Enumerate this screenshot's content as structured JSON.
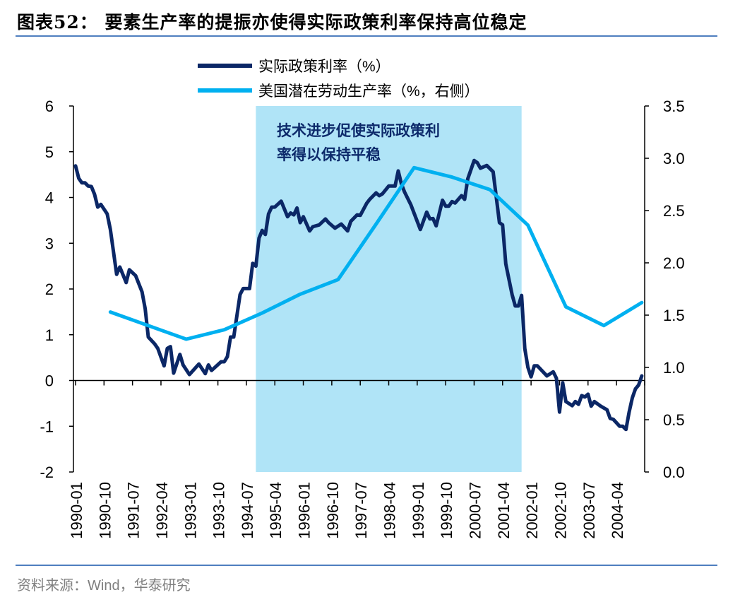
{
  "title": "图表52： 要素生产率的提振亦使得实际政策利率保持高位稳定",
  "source": "资料来源：Wind，华泰研究",
  "chart_data": {
    "type": "line",
    "title": "图表52： 要素生产率的提振亦使得实际政策利率保持高位稳定",
    "xlabel": "",
    "ylabel": "",
    "x_range": [
      "1990-01",
      "2004-12"
    ],
    "x_tick_labels": [
      "1990-01",
      "1990-10",
      "1991-07",
      "1992-04",
      "1993-01",
      "1993-10",
      "1994-07",
      "1995-04",
      "1996-01",
      "1996-10",
      "1997-07",
      "1998-04",
      "1999-01",
      "1999-10",
      "2000-07",
      "2001-04",
      "2002-01",
      "2002-10",
      "2003-07",
      "2004-04"
    ],
    "y_left": {
      "lim": [
        -2,
        6
      ],
      "ticks": [
        "-2",
        "-1",
        "0",
        "1",
        "2",
        "3",
        "4",
        "5",
        "6"
      ]
    },
    "y_right": {
      "lim": [
        0,
        3.5
      ],
      "ticks": [
        "0.0",
        "0.5",
        "1.0",
        "1.5",
        "2.0",
        "2.5",
        "3.0",
        "3.5"
      ]
    },
    "grid": false,
    "legend_position": "top-center",
    "highlight": {
      "from": "1994-10",
      "to": "2001-10",
      "color": "#b0e4f7",
      "annotation": [
        "技术进步促使实际政策利",
        "率得以保持平稳"
      ]
    },
    "series": [
      {
        "name": "实际政策利率（%）",
        "axis": "left",
        "color": "#0b2766",
        "points": [
          [
            "1990-01",
            4.69
          ],
          [
            "1990-02",
            4.42
          ],
          [
            "1990-03",
            4.32
          ],
          [
            "1990-04",
            4.32
          ],
          [
            "1990-05",
            4.25
          ],
          [
            "1990-06",
            4.24
          ],
          [
            "1990-07",
            4.07
          ],
          [
            "1990-08",
            3.79
          ],
          [
            "1990-09",
            3.85
          ],
          [
            "1990-11",
            3.64
          ],
          [
            "1990-12",
            3.3
          ],
          [
            "1991-02",
            2.32
          ],
          [
            "1991-03",
            2.48
          ],
          [
            "1991-05",
            2.14
          ],
          [
            "1991-06",
            2.42
          ],
          [
            "1991-08",
            2.29
          ],
          [
            "1991-10",
            1.94
          ],
          [
            "1991-11",
            1.57
          ],
          [
            "1991-12",
            0.95
          ],
          [
            "1992-02",
            0.8
          ],
          [
            "1992-03",
            0.7
          ],
          [
            "1992-05",
            0.32
          ],
          [
            "1992-06",
            0.7
          ],
          [
            "1992-07",
            0.74
          ],
          [
            "1992-08",
            0.16
          ],
          [
            "1992-10",
            0.57
          ],
          [
            "1992-11",
            0.34
          ],
          [
            "1993-01",
            0.13
          ],
          [
            "1993-04",
            0.36
          ],
          [
            "1993-06",
            0.15
          ],
          [
            "1993-07",
            0.34
          ],
          [
            "1993-08",
            0.22
          ],
          [
            "1993-11",
            0.41
          ],
          [
            "1993-12",
            0.41
          ],
          [
            "1994-01",
            0.52
          ],
          [
            "1994-02",
            0.95
          ],
          [
            "1994-03",
            0.95
          ],
          [
            "1994-05",
            1.88
          ],
          [
            "1994-06",
            2.01
          ],
          [
            "1994-08",
            2.01
          ],
          [
            "1994-09",
            2.56
          ],
          [
            "1994-10",
            2.5
          ],
          [
            "1994-11",
            3.11
          ],
          [
            "1994-12",
            3.28
          ],
          [
            "1995-01",
            3.19
          ],
          [
            "1995-02",
            3.64
          ],
          [
            "1995-03",
            3.79
          ],
          [
            "1995-04",
            3.79
          ],
          [
            "1995-06",
            3.92
          ],
          [
            "1995-08",
            3.58
          ],
          [
            "1995-09",
            3.66
          ],
          [
            "1995-10",
            3.62
          ],
          [
            "1995-11",
            3.77
          ],
          [
            "1995-12",
            3.45
          ],
          [
            "1996-01",
            3.58
          ],
          [
            "1996-03",
            3.27
          ],
          [
            "1996-04",
            3.36
          ],
          [
            "1996-06",
            3.4
          ],
          [
            "1996-08",
            3.53
          ],
          [
            "1996-09",
            3.45
          ],
          [
            "1996-11",
            3.33
          ],
          [
            "1997-01",
            3.42
          ],
          [
            "1997-03",
            3.27
          ],
          [
            "1997-04",
            3.48
          ],
          [
            "1997-06",
            3.62
          ],
          [
            "1997-07",
            3.61
          ],
          [
            "1997-09",
            3.87
          ],
          [
            "1997-10",
            3.96
          ],
          [
            "1997-12",
            4.1
          ],
          [
            "1998-01",
            4.04
          ],
          [
            "1998-02",
            4.08
          ],
          [
            "1998-04",
            4.25
          ],
          [
            "1998-06",
            4.25
          ],
          [
            "1998-07",
            4.58
          ],
          [
            "1998-08",
            4.3
          ],
          [
            "1998-09",
            4.12
          ],
          [
            "1998-11",
            3.84
          ],
          [
            "1999-02",
            3.3
          ],
          [
            "1999-04",
            3.68
          ],
          [
            "1999-05",
            3.53
          ],
          [
            "1999-06",
            3.54
          ],
          [
            "1999-07",
            3.38
          ],
          [
            "1999-09",
            3.94
          ],
          [
            "1999-10",
            3.81
          ],
          [
            "1999-11",
            3.81
          ],
          [
            "1999-12",
            3.91
          ],
          [
            "2000-01",
            3.88
          ],
          [
            "2000-03",
            4.04
          ],
          [
            "2000-04",
            3.96
          ],
          [
            "2000-05",
            4.41
          ],
          [
            "2000-07",
            4.81
          ],
          [
            "2000-08",
            4.76
          ],
          [
            "2000-09",
            4.64
          ],
          [
            "2000-11",
            4.7
          ],
          [
            "2001-01",
            4.56
          ],
          [
            "2001-03",
            3.45
          ],
          [
            "2001-04",
            3.4
          ],
          [
            "2001-05",
            2.55
          ],
          [
            "2001-07",
            1.88
          ],
          [
            "2001-08",
            1.63
          ],
          [
            "2001-09",
            1.63
          ],
          [
            "2001-10",
            1.86
          ],
          [
            "2001-11",
            0.7
          ],
          [
            "2001-12",
            0.29
          ],
          [
            "2002-01",
            0.08
          ],
          [
            "2002-02",
            0.32
          ],
          [
            "2002-03",
            0.32
          ],
          [
            "2002-06",
            0.1
          ],
          [
            "2002-08",
            0.19
          ],
          [
            "2002-09",
            0.05
          ],
          [
            "2002-10",
            -0.69
          ],
          [
            "2002-11",
            -0.05
          ],
          [
            "2002-12",
            -0.46
          ],
          [
            "2003-02",
            -0.55
          ],
          [
            "2003-03",
            -0.46
          ],
          [
            "2003-04",
            -0.52
          ],
          [
            "2003-05",
            -0.33
          ],
          [
            "2003-06",
            -0.36
          ],
          [
            "2003-07",
            -0.3
          ],
          [
            "2003-08",
            -0.56
          ],
          [
            "2003-09",
            -0.46
          ],
          [
            "2003-11",
            -0.56
          ],
          [
            "2004-01",
            -0.64
          ],
          [
            "2004-02",
            -0.83
          ],
          [
            "2004-03",
            -0.85
          ],
          [
            "2004-05",
            -1.0
          ],
          [
            "2004-06",
            -1.0
          ],
          [
            "2004-07",
            -1.07
          ],
          [
            "2004-08",
            -0.69
          ],
          [
            "2004-09",
            -0.38
          ],
          [
            "2004-10",
            -0.18
          ],
          [
            "2004-11",
            -0.1
          ],
          [
            "2004-12",
            0.1
          ]
        ]
      },
      {
        "name": "美国潜在劳动生产率（%，右侧）",
        "axis": "right",
        "color": "#00b0f0",
        "points": [
          [
            "1990-12",
            1.53
          ],
          [
            "1991-12",
            1.4
          ],
          [
            "1992-12",
            1.27
          ],
          [
            "1993-12",
            1.36
          ],
          [
            "1994-12",
            1.52
          ],
          [
            "1995-12",
            1.7
          ],
          [
            "1996-12",
            1.84
          ],
          [
            "1997-12",
            2.37
          ],
          [
            "1998-12",
            2.91
          ],
          [
            "1999-12",
            2.82
          ],
          [
            "2000-12",
            2.7
          ],
          [
            "2001-12",
            2.36
          ],
          [
            "2002-12",
            1.58
          ],
          [
            "2003-12",
            1.4
          ],
          [
            "2004-12",
            1.62
          ]
        ]
      }
    ]
  }
}
